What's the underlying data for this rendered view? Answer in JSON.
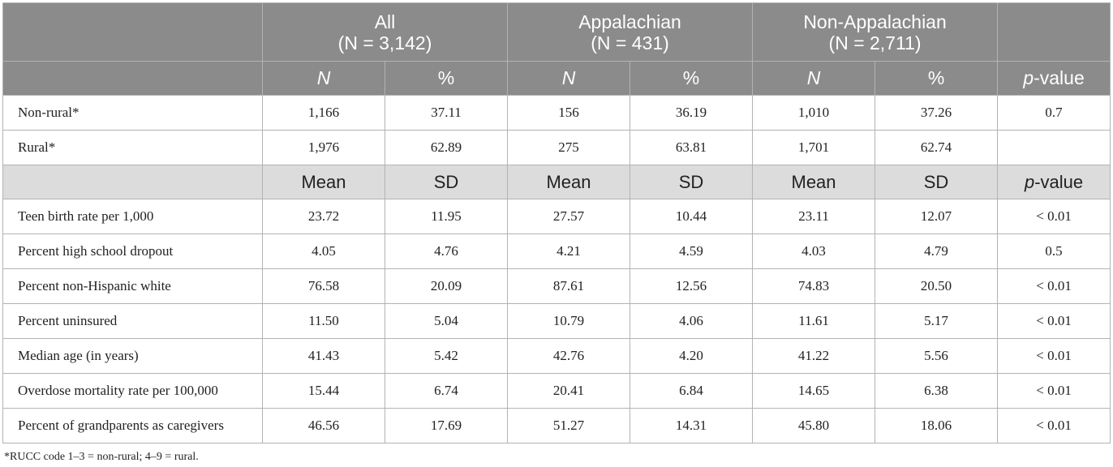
{
  "header": {
    "groups": [
      {
        "name": "All",
        "n_label": "(N = 3,142)"
      },
      {
        "name": "Appalachian",
        "n_label": "(N = 431)"
      },
      {
        "name": "Non-Appalachian",
        "n_label": "(N = 2,711)"
      }
    ],
    "sub_n": "N",
    "sub_pct": "%",
    "pvalue": "p-value",
    "pvalue_italic": "p",
    "pvalue_rest": "-value"
  },
  "categorical_rows": [
    {
      "label": "Non-rural*",
      "values": [
        "1,166",
        "37.11",
        "156",
        "36.19",
        "1,010",
        "37.26"
      ],
      "p": "0.7"
    },
    {
      "label": "Rural*",
      "values": [
        "1,976",
        "62.89",
        "275",
        "63.81",
        "1,701",
        "62.74"
      ],
      "p": ""
    }
  ],
  "mid_header": {
    "mean": "Mean",
    "sd": "SD",
    "pvalue_italic": "p",
    "pvalue_rest": "-value"
  },
  "continuous_rows": [
    {
      "label": "Teen birth rate per 1,000",
      "values": [
        "23.72",
        "11.95",
        "27.57",
        "10.44",
        "23.11",
        "12.07"
      ],
      "p": "< 0.01"
    },
    {
      "label": "Percent high school dropout",
      "values": [
        "4.05",
        "4.76",
        "4.21",
        "4.59",
        "4.03",
        "4.79"
      ],
      "p": "0.5"
    },
    {
      "label": "Percent non-Hispanic white",
      "values": [
        "76.58",
        "20.09",
        "87.61",
        "12.56",
        "74.83",
        "20.50"
      ],
      "p": "< 0.01"
    },
    {
      "label": "Percent uninsured",
      "values": [
        "11.50",
        "5.04",
        "10.79",
        "4.06",
        "11.61",
        "5.17"
      ],
      "p": "< 0.01"
    },
    {
      "label": "Median age (in years)",
      "values": [
        "41.43",
        "5.42",
        "42.76",
        "4.20",
        "41.22",
        "5.56"
      ],
      "p": "< 0.01"
    },
    {
      "label": "Overdose mortality rate per 100,000",
      "values": [
        "15.44",
        "6.74",
        "20.41",
        "6.84",
        "14.65",
        "6.38"
      ],
      "p": "< 0.01"
    },
    {
      "label": "Percent of grandparents as caregivers",
      "values": [
        "46.56",
        "17.69",
        "51.27",
        "14.31",
        "45.80",
        "18.06"
      ],
      "p": "< 0.01"
    }
  ],
  "footnote": "*RUCC code 1–3 = non-rural; 4–9 = rural."
}
